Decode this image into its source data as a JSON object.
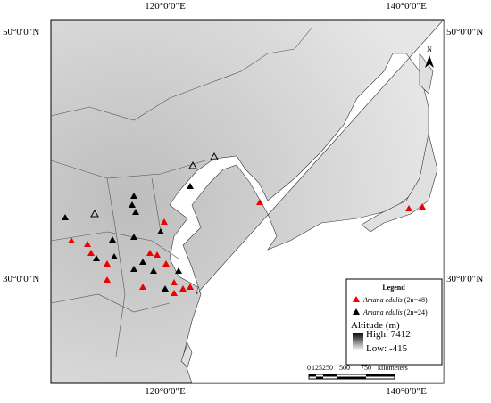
{
  "frame": {
    "top_labels": [
      "120°0′0″E",
      "140°0′0″E"
    ],
    "bottom_labels": [
      "120°0′0″E",
      "140°0′0″E"
    ],
    "left_labels": [
      "50°0′0″N",
      "30°0′0″N"
    ],
    "right_labels": [
      "50°0′0″N",
      "30°0′0″N"
    ]
  },
  "north_arrow": "N",
  "legend": {
    "title": "Legend",
    "items": [
      {
        "species": "Amana edulis",
        "ploidy": "(2n=48)"
      },
      {
        "species": "Amana edulis",
        "ploidy": "(2n=24)"
      }
    ],
    "altitude": {
      "title": "Altitude (m)",
      "high": "High: 7412",
      "low": "Low: -415"
    }
  },
  "scale_bar": {
    "ticks": [
      "0",
      "125",
      "250",
      "500",
      "750"
    ],
    "unit": "kilometers"
  }
}
